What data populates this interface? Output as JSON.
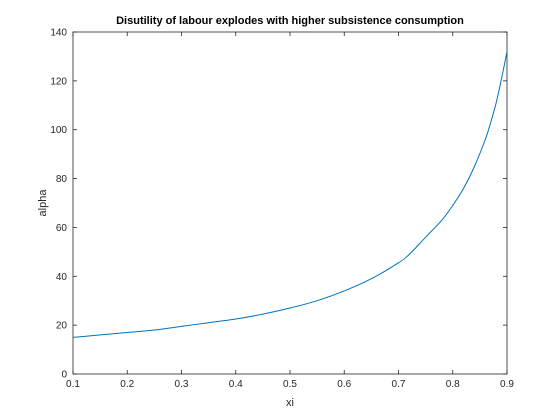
{
  "chart_data": {
    "type": "line",
    "title": "Disutility of labour explodes with higher subsistence consumption",
    "xlabel": "xi",
    "ylabel": "alpha",
    "xlim": [
      0.1,
      0.9
    ],
    "ylim": [
      0,
      140
    ],
    "xticks": [
      0.1,
      0.2,
      0.3,
      0.4,
      0.5,
      0.6,
      0.7,
      0.8,
      0.9
    ],
    "xtick_labels": [
      "0.1",
      "0.2",
      "0.3",
      "0.4",
      "0.5",
      "0.6",
      "0.7",
      "0.8",
      "0.9"
    ],
    "yticks": [
      0,
      20,
      40,
      60,
      80,
      100,
      120,
      140
    ],
    "ytick_labels": [
      "0",
      "20",
      "40",
      "60",
      "80",
      "100",
      "120",
      "140"
    ],
    "grid": false,
    "legend": "none",
    "series": [
      {
        "color": "#0072bd",
        "x": [
          0.1,
          0.15,
          0.2,
          0.25,
          0.3,
          0.35,
          0.4,
          0.45,
          0.5,
          0.55,
          0.6,
          0.65,
          0.7,
          0.72,
          0.75,
          0.78,
          0.8,
          0.82,
          0.84,
          0.86,
          0.87,
          0.88,
          0.89,
          0.9
        ],
        "y": [
          15,
          16,
          17,
          18,
          19.5,
          21,
          22.5,
          24.5,
          27,
          30,
          34,
          39,
          45.5,
          49,
          56,
          63,
          69,
          76,
          85,
          96,
          103,
          111,
          121,
          132
        ]
      }
    ]
  }
}
